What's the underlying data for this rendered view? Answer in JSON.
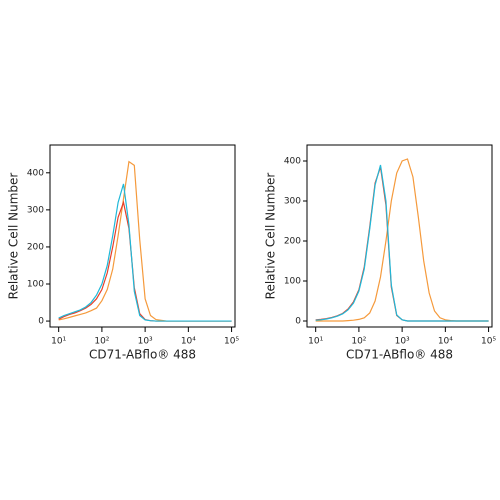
{
  "chart_data": [
    {
      "type": "line",
      "xscale": "log",
      "xlabel": "CD71-ABflo® 488",
      "ylabel": "Relative Cell Number",
      "xlim": [
        6.3,
        120000
      ],
      "ylim": [
        -16,
        475
      ],
      "xticks": [
        {
          "value": 10,
          "label": "10¹"
        },
        {
          "value": 100,
          "label": "10²"
        },
        {
          "value": 1000,
          "label": "10³"
        },
        {
          "value": 10000,
          "label": "10⁴"
        },
        {
          "value": 100000,
          "label": "10⁵"
        }
      ],
      "yticks": [
        0,
        100,
        200,
        300,
        400
      ],
      "x": [
        10,
        13.3,
        17.8,
        23.7,
        31.6,
        42.2,
        56.2,
        75,
        100,
        133,
        178,
        237,
        316,
        422,
        562,
        750,
        1000,
        1330,
        1780,
        2370,
        3160,
        4220,
        5620,
        7500,
        10000,
        13300,
        17800,
        23700,
        31600,
        42200,
        56200,
        75000,
        100000
      ],
      "series": [
        {
          "color": "#f59a3c",
          "values": [
            3,
            6,
            10,
            14,
            18,
            22,
            28,
            35,
            55,
            85,
            140,
            230,
            330,
            430,
            420,
            220,
            60,
            15,
            4,
            2,
            0,
            0,
            0,
            0,
            0,
            0,
            0,
            0,
            0,
            0,
            0,
            0,
            0
          ]
        },
        {
          "color": "#e8402a",
          "values": [
            5,
            12,
            18,
            22,
            28,
            35,
            45,
            60,
            85,
            130,
            200,
            280,
            320,
            250,
            90,
            20,
            4,
            1,
            0,
            0,
            0,
            0,
            0,
            0,
            0,
            0,
            0,
            0,
            0,
            0,
            0,
            0,
            0
          ]
        },
        {
          "color": "#1fb8d8",
          "values": [
            8,
            15,
            20,
            25,
            30,
            38,
            50,
            70,
            100,
            150,
            230,
            320,
            370,
            260,
            80,
            15,
            3,
            1,
            0,
            0,
            0,
            0,
            0,
            0,
            0,
            0,
            0,
            0,
            0,
            0,
            0,
            0,
            0
          ]
        }
      ]
    },
    {
      "type": "line",
      "xscale": "log",
      "xlabel": "CD71-ABflo® 488",
      "ylabel": "Relative Cell Number",
      "xlim": [
        6.3,
        120000
      ],
      "ylim": [
        -15,
        440
      ],
      "xticks": [
        {
          "value": 10,
          "label": "10¹"
        },
        {
          "value": 100,
          "label": "10²"
        },
        {
          "value": 1000,
          "label": "10³"
        },
        {
          "value": 10000,
          "label": "10⁴"
        },
        {
          "value": 100000,
          "label": "10⁵"
        }
      ],
      "yticks": [
        0,
        100,
        200,
        300,
        400
      ],
      "x": [
        10,
        13.3,
        17.8,
        23.7,
        31.6,
        42.2,
        56.2,
        75,
        100,
        133,
        178,
        237,
        316,
        422,
        562,
        750,
        1000,
        1330,
        1780,
        2370,
        3160,
        4220,
        5620,
        7500,
        10000,
        13300,
        17800,
        23700,
        31600,
        42200,
        56200,
        75000,
        100000
      ],
      "series": [
        {
          "color": "#f59a3c",
          "values": [
            0,
            0,
            0,
            0,
            0,
            0,
            1,
            2,
            4,
            8,
            20,
            50,
            110,
            200,
            300,
            370,
            400,
            405,
            360,
            260,
            150,
            70,
            25,
            8,
            3,
            1,
            0,
            0,
            0,
            0,
            0,
            0,
            0
          ]
        },
        {
          "color": "#e8402a",
          "values": [
            3,
            4,
            6,
            9,
            13,
            19,
            30,
            48,
            78,
            135,
            235,
            345,
            385,
            290,
            85,
            14,
            3,
            0,
            0,
            0,
            0,
            0,
            0,
            0,
            0,
            0,
            0,
            0,
            0,
            0,
            0,
            0,
            0
          ]
        },
        {
          "color": "#1fb8d8",
          "values": [
            2,
            3,
            5,
            8,
            12,
            18,
            28,
            45,
            75,
            130,
            230,
            340,
            390,
            300,
            90,
            15,
            3,
            0,
            0,
            0,
            0,
            0,
            0,
            0,
            0,
            0,
            0,
            0,
            0,
            0,
            0,
            0,
            0
          ]
        }
      ]
    }
  ]
}
